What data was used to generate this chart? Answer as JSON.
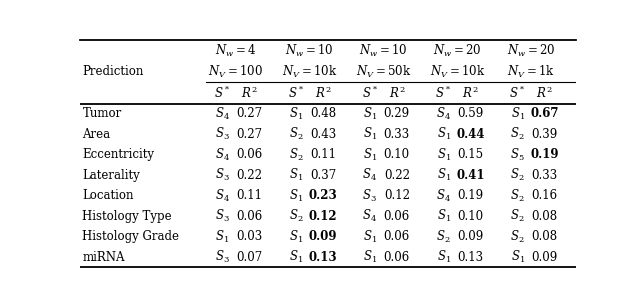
{
  "nw_labels": [
    "$N_w = 4$",
    "$N_w = 10$",
    "$N_w = 10$",
    "$N_w = 20$",
    "$N_w = 20$"
  ],
  "nv_labels": [
    "$N_V = 100$",
    "$N_V = 10$k",
    "$N_V = 50$k",
    "$N_V = 10$k",
    "$N_V = 1$k"
  ],
  "col_headers": [
    "$S^*$",
    "$R^2$",
    "$S^*$",
    "$R^2$",
    "$S^*$",
    "$R^2$",
    "$S^*$",
    "$R^2$",
    "$S^*$",
    "$R^2$"
  ],
  "row_label": "Prediction",
  "rows": [
    {
      "label": "Tumor",
      "data": [
        "$S_4$",
        "0.27",
        "$S_1$",
        "0.48",
        "$S_1$",
        "0.29",
        "$S_4$",
        "0.59",
        "$S_1$",
        "0.67"
      ],
      "bold": [
        false,
        false,
        false,
        false,
        false,
        false,
        false,
        false,
        true,
        true
      ]
    },
    {
      "label": "Area",
      "data": [
        "$S_3$",
        "0.27",
        "$S_2$",
        "0.43",
        "$S_1$",
        "0.33",
        "$S_1$",
        "0.44",
        "$S_2$",
        "0.39"
      ],
      "bold": [
        false,
        false,
        false,
        false,
        false,
        false,
        true,
        true,
        false,
        false
      ]
    },
    {
      "label": "Eccentricity",
      "data": [
        "$S_4$",
        "0.06",
        "$S_2$",
        "0.11",
        "$S_1$",
        "0.10",
        "$S_1$",
        "0.15",
        "$S_5$",
        "0.19"
      ],
      "bold": [
        false,
        false,
        false,
        false,
        false,
        false,
        false,
        false,
        true,
        true
      ]
    },
    {
      "label": "Laterality",
      "data": [
        "$S_3$",
        "0.22",
        "$S_1$",
        "0.37",
        "$S_4$",
        "0.22",
        "$S_1$",
        "0.41",
        "$S_2$",
        "0.33"
      ],
      "bold": [
        false,
        false,
        false,
        false,
        false,
        false,
        true,
        true,
        false,
        false
      ]
    },
    {
      "label": "Location",
      "data": [
        "$S_4$",
        "0.11",
        "$S_1$",
        "0.23",
        "$S_3$",
        "0.12",
        "$S_4$",
        "0.19",
        "$S_2$",
        "0.16"
      ],
      "bold": [
        false,
        false,
        true,
        true,
        false,
        false,
        false,
        false,
        false,
        false
      ]
    },
    {
      "label": "Histology Type",
      "data": [
        "$S_3$",
        "0.06",
        "$S_2$",
        "0.12",
        "$S_4$",
        "0.06",
        "$S_1$",
        "0.10",
        "$S_2$",
        "0.08"
      ],
      "bold": [
        false,
        false,
        true,
        true,
        false,
        false,
        false,
        false,
        false,
        false
      ]
    },
    {
      "label": "Histology Grade",
      "data": [
        "$S_1$",
        "0.03",
        "$S_1$",
        "0.09",
        "$S_1$",
        "0.06",
        "$S_2$",
        "0.09",
        "$S_2$",
        "0.08"
      ],
      "bold": [
        false,
        false,
        true,
        true,
        false,
        false,
        false,
        false,
        false,
        false
      ]
    },
    {
      "label": "miRNA",
      "data": [
        "$S_3$",
        "0.07",
        "$S_1$",
        "0.13",
        "$S_1$",
        "0.06",
        "$S_1$",
        "0.13",
        "$S_1$",
        "0.09"
      ],
      "bold": [
        false,
        false,
        true,
        true,
        false,
        false,
        false,
        false,
        false,
        false
      ]
    }
  ],
  "background_color": "#ffffff",
  "font_size": 8.5,
  "header_font_size": 8.5
}
